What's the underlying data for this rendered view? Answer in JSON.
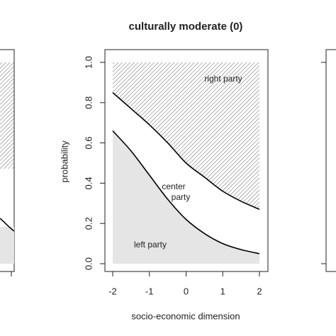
{
  "chart_data": {
    "type": "stacked_area",
    "title": "culturally moderate (0)",
    "x_label": "socio-economic dimension",
    "y_label": "probability",
    "x": [
      -2,
      -1.5,
      -1,
      -0.5,
      0,
      0.5,
      1,
      1.5,
      2
    ],
    "series": [
      {
        "name": "left party",
        "color": "#e5e5e5",
        "values": [
          0.66,
          0.56,
          0.44,
          0.32,
          0.22,
          0.15,
          0.1,
          0.07,
          0.05
        ]
      },
      {
        "name": "center party",
        "color": "#ffffff",
        "values": [
          0.19,
          0.21,
          0.25,
          0.28,
          0.28,
          0.28,
          0.26,
          0.24,
          0.22
        ]
      },
      {
        "name": "right party",
        "color": "#555555",
        "hatched": true,
        "values": [
          0.15,
          0.23,
          0.31,
          0.4,
          0.5,
          0.57,
          0.64,
          0.69,
          0.73
        ]
      }
    ],
    "xlim": [
      -2,
      2
    ],
    "xticks": [
      -2,
      -1,
      0,
      1,
      2
    ],
    "ylim": [
      0,
      1
    ],
    "yticks": [
      {
        "value": 0,
        "label": "0.0"
      },
      {
        "value": 0.2,
        "label": "0.2"
      },
      {
        "value": 0.4,
        "label": "0.4"
      },
      {
        "value": 0.6,
        "label": "0.6"
      },
      {
        "value": 0.8,
        "label": "0.8"
      },
      {
        "value": 1,
        "label": "1.0"
      }
    ]
  }
}
